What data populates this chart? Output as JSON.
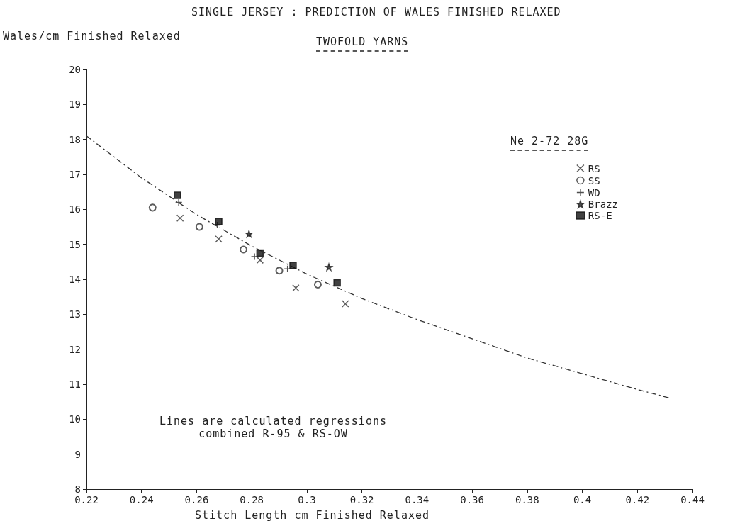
{
  "chart_data": {
    "type": "scatter",
    "title": "SINGLE JERSEY : PREDICTION OF WALES FINISHED RELAXED",
    "subtitle": "TWOFOLD YARNS",
    "xlabel": "Stitch Length cm Finished Relaxed",
    "ylabel": "Wales/cm Finished Relaxed",
    "legend_title": "Ne 2-72 28G",
    "legend": "top right",
    "grid": false,
    "xlim": [
      0.22,
      0.44
    ],
    "xticks": [
      0.22,
      0.24,
      0.26,
      0.28,
      0.3,
      0.32,
      0.34,
      0.36,
      0.38,
      0.4,
      0.42,
      0.44
    ],
    "ylim": [
      8,
      20
    ],
    "yticks": [
      8,
      9,
      10,
      11,
      12,
      13,
      14,
      15,
      16,
      17,
      18,
      19,
      20
    ],
    "annotations": [
      "Lines are calculated regressions\ncombined R-95 & RS-OW"
    ],
    "series": [
      {
        "name": "RS",
        "marker": "cross",
        "color": "#333333",
        "x": [
          0.254,
          0.268,
          0.283,
          0.296,
          0.314
        ],
        "values": [
          15.75,
          15.15,
          14.55,
          13.75,
          13.3
        ]
      },
      {
        "name": "SS",
        "marker": "circle",
        "color": "#333333",
        "x": [
          0.244,
          0.261,
          0.277,
          0.29,
          0.304
        ],
        "values": [
          16.05,
          15.5,
          14.85,
          14.25,
          13.85
        ]
      },
      {
        "name": "WD",
        "marker": "plus",
        "color": "#222222",
        "x": [
          0.2535,
          0.2675,
          0.281,
          0.293
        ],
        "values": [
          16.2,
          15.55,
          14.65,
          14.3
        ]
      },
      {
        "name": "Brazz",
        "marker": "star",
        "color": "#222222",
        "x": [
          0.279,
          0.308
        ],
        "values": [
          15.3,
          14.35
        ]
      },
      {
        "name": "RS-E",
        "marker": "square",
        "color": "#111111",
        "x": [
          0.253,
          0.268,
          0.283,
          0.295,
          0.311
        ],
        "values": [
          16.4,
          15.65,
          14.75,
          14.4,
          13.9
        ]
      },
      {
        "type": "line",
        "marker": "none",
        "line_style": "dashed",
        "color": "#333333",
        "x": [
          0.22,
          0.24,
          0.26,
          0.28,
          0.3,
          0.32,
          0.34,
          0.36,
          0.38,
          0.4,
          0.42,
          0.432
        ],
        "values": [
          18.1,
          16.9,
          15.85,
          14.95,
          14.15,
          13.45,
          12.85,
          12.3,
          11.75,
          11.3,
          10.85,
          10.6
        ]
      }
    ]
  }
}
